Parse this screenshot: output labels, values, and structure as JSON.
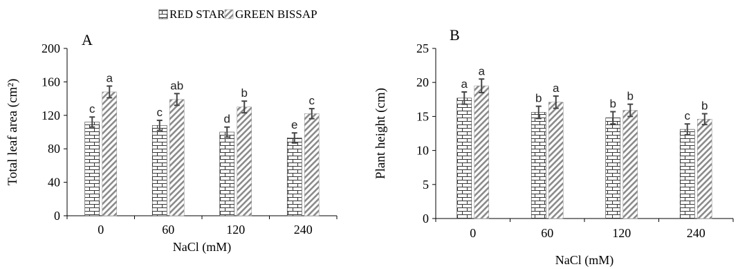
{
  "legend": [
    {
      "name": "RED STAR",
      "pattern": "brick"
    },
    {
      "name": "GREEN BISSAP",
      "pattern": "diagonal"
    }
  ],
  "chart_data": [
    {
      "type": "bar",
      "panel_label": "A",
      "xlabel": "NaCl (mM)",
      "ylabel": "Total leaf area (cm²)",
      "categories": [
        "0",
        "60",
        "120",
        "240"
      ],
      "ylim": [
        0,
        200
      ],
      "yticks": [
        "0",
        "40",
        "80",
        "120",
        "160",
        "200"
      ],
      "series": [
        {
          "name": "RED STAR",
          "values": [
            112,
            108,
            100,
            93
          ],
          "errors": [
            6,
            6,
            6,
            6
          ],
          "letters": [
            "c",
            "c",
            "d",
            "e"
          ]
        },
        {
          "name": "GREEN BISSAP",
          "values": [
            148,
            139,
            130,
            122
          ],
          "errors": [
            7,
            7,
            7,
            6
          ],
          "letters": [
            "a",
            "ab",
            "b",
            "c"
          ]
        }
      ]
    },
    {
      "type": "bar",
      "panel_label": "B",
      "xlabel": "NaCl (mM)",
      "ylabel": "Plant height (cm)",
      "categories": [
        "0",
        "60",
        "120",
        "240"
      ],
      "ylim": [
        0,
        25
      ],
      "yticks": [
        "0",
        "5",
        "10",
        "15",
        "20",
        "25"
      ],
      "series": [
        {
          "name": "RED STAR",
          "values": [
            17.7,
            15.6,
            14.8,
            13.1
          ],
          "errors": [
            0.9,
            0.9,
            0.9,
            0.8
          ],
          "letters": [
            "a",
            "b",
            "b",
            "c"
          ]
        },
        {
          "name": "GREEN BISSAP",
          "values": [
            19.5,
            17.1,
            15.9,
            14.6
          ],
          "errors": [
            1.0,
            0.9,
            0.9,
            0.8
          ],
          "letters": [
            "a",
            "a",
            "b",
            "b"
          ]
        }
      ]
    }
  ]
}
